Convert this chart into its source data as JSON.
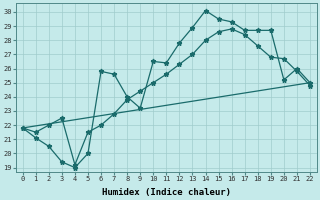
{
  "xlabel": "Humidex (Indice chaleur)",
  "bg_color": "#c5eaea",
  "grid_color": "#a0cccc",
  "line_color": "#1a6b6b",
  "xlim": [
    -0.5,
    22.5
  ],
  "ylim": [
    18.7,
    30.6
  ],
  "yticks": [
    19,
    20,
    21,
    22,
    23,
    24,
    25,
    26,
    27,
    28,
    29,
    30
  ],
  "xticks": [
    0,
    1,
    2,
    3,
    4,
    5,
    6,
    7,
    8,
    9,
    10,
    11,
    12,
    13,
    14,
    15,
    16,
    17,
    18,
    19,
    20,
    21,
    22
  ],
  "line1_x": [
    0,
    1,
    2,
    3,
    4,
    5,
    6,
    7,
    8,
    9,
    10,
    11,
    12,
    13,
    14,
    15,
    16,
    17,
    18,
    19,
    20,
    21,
    22
  ],
  "line1_y": [
    21.8,
    21.1,
    20.5,
    19.4,
    19.0,
    20.0,
    25.8,
    25.6,
    24.0,
    23.2,
    26.5,
    26.4,
    27.8,
    28.9,
    30.1,
    29.5,
    29.3,
    28.7,
    28.7,
    28.7,
    25.2,
    26.0,
    25.0
  ],
  "line2_x": [
    0,
    1,
    2,
    3,
    4,
    5,
    6,
    7,
    8,
    9,
    10,
    11,
    12,
    13,
    14,
    15,
    16,
    17,
    18,
    19,
    20,
    21,
    22
  ],
  "line2_y": [
    21.8,
    21.5,
    22.0,
    22.5,
    19.2,
    21.5,
    22.0,
    22.8,
    23.8,
    24.4,
    25.0,
    25.6,
    26.3,
    27.0,
    28.0,
    28.6,
    28.8,
    28.4,
    27.6,
    26.8,
    26.7,
    25.8,
    24.8
  ],
  "line3_x": [
    0,
    22
  ],
  "line3_y": [
    21.8,
    25.0
  ]
}
